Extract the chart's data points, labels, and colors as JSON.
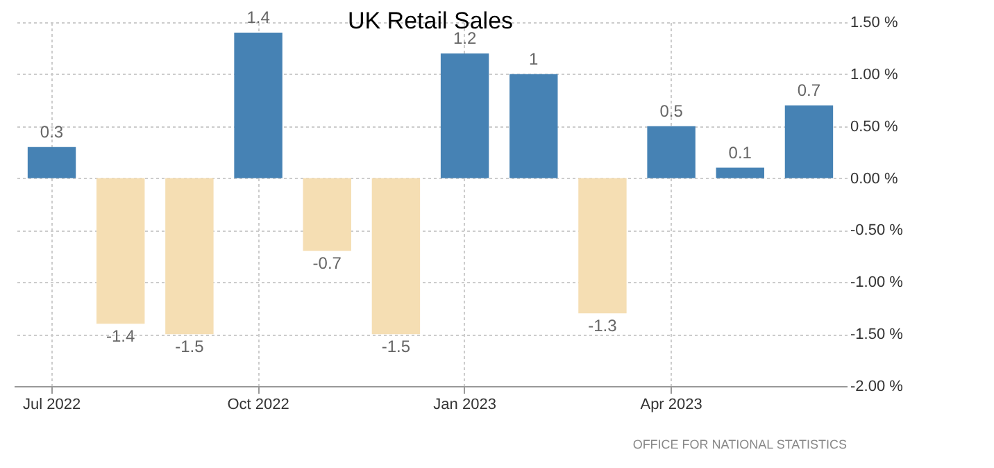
{
  "chart_data": {
    "type": "bar",
    "title": "UK Retail Sales",
    "categories": [
      "Jul 2022",
      null,
      null,
      "Oct 2022",
      null,
      null,
      "Jan 2023",
      null,
      null,
      "Apr 2023",
      null,
      null
    ],
    "values": [
      0.3,
      -1.4,
      -1.5,
      1.4,
      -0.7,
      -1.5,
      1.2,
      1,
      -1.3,
      0.5,
      0.1,
      0.7
    ],
    "colors": [
      "#4682b4",
      "#f5deb3",
      "#f5deb3",
      "#4682b4",
      "#f5deb3",
      "#f5deb3",
      "#4682b4",
      "#4682b4",
      "#f5deb3",
      "#4682b4",
      "#4682b4",
      "#4682b4"
    ],
    "ylim": [
      -2,
      1.5
    ],
    "yticks": [
      {
        "value": -2,
        "label": "-2.00 %"
      },
      {
        "value": -1.5,
        "label": "-1.50 %"
      },
      {
        "value": -1,
        "label": "-1.00 %"
      },
      {
        "value": -0.5,
        "label": "-0.50 %"
      },
      {
        "value": 0,
        "label": "0.00 %"
      },
      {
        "value": 0.5,
        "label": "0.50 %"
      },
      {
        "value": 1,
        "label": "1.00 %"
      },
      {
        "value": 1.5,
        "label": "1.50 %"
      }
    ],
    "grid": true,
    "data_labels": true,
    "annotations": [
      "OFFICE FOR NATIONAL STATISTICS"
    ]
  }
}
